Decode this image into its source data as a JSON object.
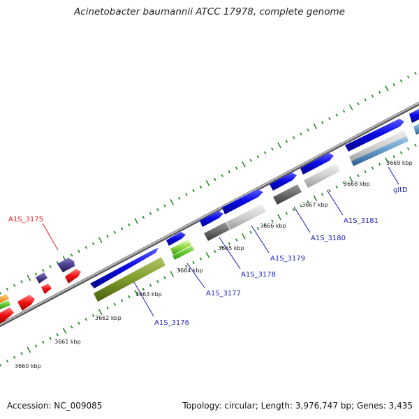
{
  "title": "Acinetobacter baumannii ATCC 17978, complete genome",
  "footer": {
    "accession": "Accession: NC_009085",
    "summary": "Topology: circular; Length: 3,976,747 bp; Genes: 3,435"
  },
  "colors": {
    "backbone": "#8a8a8a",
    "tick": "#2a8a2a",
    "cds": "#0a0ae6",
    "label_blue": "#1a1ab8",
    "label_red": "#e01818"
  },
  "scale_labels": [
    "3660 kbp",
    "3661 kbp",
    "3662 kbp",
    "3663 kbp",
    "3664 kbp",
    "3665 kbp",
    "3666 kbp",
    "3667 kbp",
    "3668 kbp",
    "3669 kbp"
  ],
  "gene_labels": [
    {
      "name": "A1S_3175",
      "color": "red"
    },
    {
      "name": "A1S_3176",
      "color": "blue"
    },
    {
      "name": "A1S_3177",
      "color": "blue"
    },
    {
      "name": "A1S_3178",
      "color": "blue"
    },
    {
      "name": "A1S_3179",
      "color": "blue"
    },
    {
      "name": "A1S_3180",
      "color": "blue"
    },
    {
      "name": "A1S_3181",
      "color": "blue"
    },
    {
      "name": "gltD",
      "color": "blue"
    }
  ]
}
